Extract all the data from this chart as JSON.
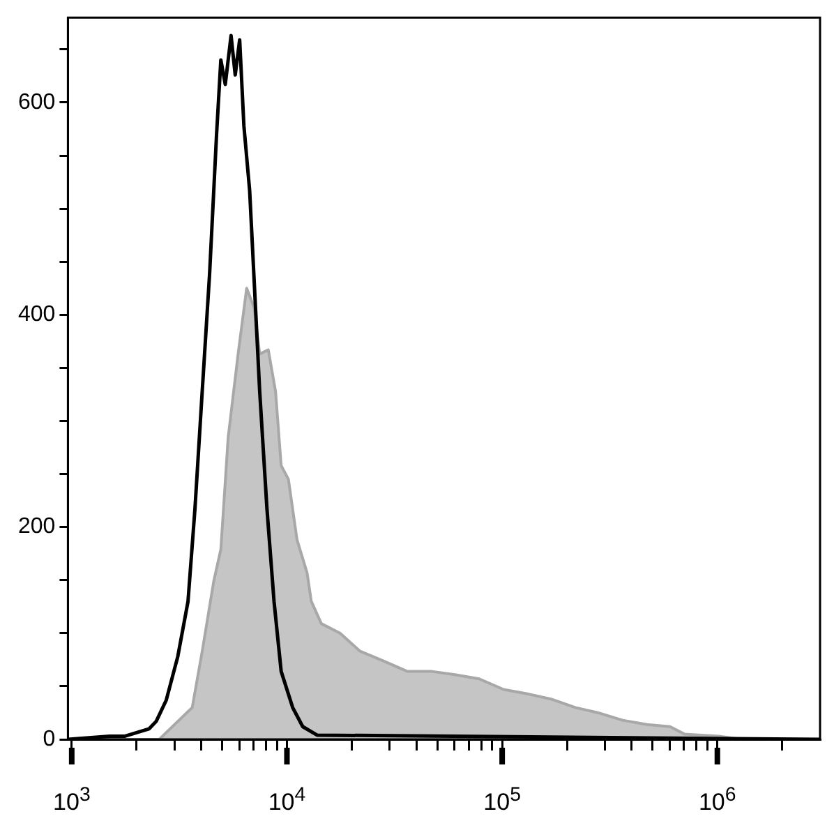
{
  "chart_data": {
    "type": "area",
    "log": "x",
    "grid": false,
    "legend": false,
    "xlim": [
      960,
      3000000
    ],
    "xticks": [
      {
        "value": 1000,
        "label": "10$^{3}$"
      },
      {
        "value": 2000,
        "label": null
      },
      {
        "value": 3000,
        "label": null
      },
      {
        "value": 4000,
        "label": null
      },
      {
        "value": 5000,
        "label": null
      },
      {
        "value": 6000,
        "label": null
      },
      {
        "value": 7000,
        "label": null
      },
      {
        "value": 8000,
        "label": null
      },
      {
        "value": 9000,
        "label": null
      },
      {
        "value": 10000,
        "label": "10$^{4}$"
      },
      {
        "value": 20000,
        "label": null
      },
      {
        "value": 30000,
        "label": null
      },
      {
        "value": 40000,
        "label": null
      },
      {
        "value": 50000,
        "label": null
      },
      {
        "value": 60000,
        "label": null
      },
      {
        "value": 70000,
        "label": null
      },
      {
        "value": 80000,
        "label": null
      },
      {
        "value": 90000,
        "label": null
      },
      {
        "value": 100000,
        "label": "10$^{5}$"
      },
      {
        "value": 200000,
        "label": null
      },
      {
        "value": 300000,
        "label": null
      },
      {
        "value": 400000,
        "label": null
      },
      {
        "value": 500000,
        "label": null
      },
      {
        "value": 600000,
        "label": null
      },
      {
        "value": 700000,
        "label": null
      },
      {
        "value": 800000,
        "label": null
      },
      {
        "value": 900000,
        "label": null
      },
      {
        "value": 1000000,
        "label": "10$^{6}$"
      },
      {
        "value": 2000000,
        "label": null
      }
    ],
    "ylim": [
      0,
      680
    ],
    "yticks": [
      0,
      {
        "value": 50,
        "label": null
      },
      {
        "value": 100,
        "label": null
      },
      {
        "value": 150,
        "label": null
      },
      200,
      {
        "value": 250,
        "label": null
      },
      {
        "value": 300,
        "label": null
      },
      {
        "value": 350,
        "label": null
      },
      400,
      {
        "value": 450,
        "label": null
      },
      {
        "value": 500,
        "label": null
      },
      {
        "value": 550,
        "label": null
      },
      600,
      {
        "value": 650,
        "label": null
      }
    ],
    "series": [
      {
        "type": "area",
        "color": "#a8a8a8",
        "x": [
          960,
          2550,
          3630,
          4040,
          4570,
          4930,
          5330,
          5930,
          6500,
          7030,
          7470,
          8190,
          8850,
          9400,
          10160,
          11140,
          12400,
          12980,
          14450,
          17650,
          21880,
          27980,
          36300,
          47130,
          60260,
          78200,
          101600,
          129800,
          168600,
          218800,
          279700,
          363100,
          471300,
          602600,
          702500,
          1016000,
          1298000,
          3000000
        ],
        "values": [
          0,
          0,
          30,
          83,
          149,
          179,
          284,
          363,
          425,
          407,
          363,
          367,
          328,
          258,
          245,
          188,
          157,
          130,
          109,
          100,
          83,
          74,
          64,
          64,
          61,
          57,
          47,
          43,
          38,
          30,
          25,
          18,
          14,
          12,
          5,
          3,
          0,
          0
        ]
      },
      {
        "type": "line",
        "color": "#000000",
        "x": [
          960,
          1500,
          1770,
          2290,
          2470,
          2750,
          3110,
          3470,
          3740,
          4040,
          4370,
          4710,
          4930,
          5170,
          5500,
          5750,
          6030,
          6310,
          6710,
          7470,
          8070,
          8710,
          9400,
          10630,
          11840,
          13800,
          3000000
        ],
        "values": [
          0,
          3,
          3,
          10,
          17,
          37,
          78,
          130,
          218,
          328,
          438,
          570,
          640,
          617,
          663,
          626,
          659,
          578,
          517,
          328,
          218,
          130,
          64,
          30,
          12,
          4,
          0
        ]
      }
    ]
  }
}
